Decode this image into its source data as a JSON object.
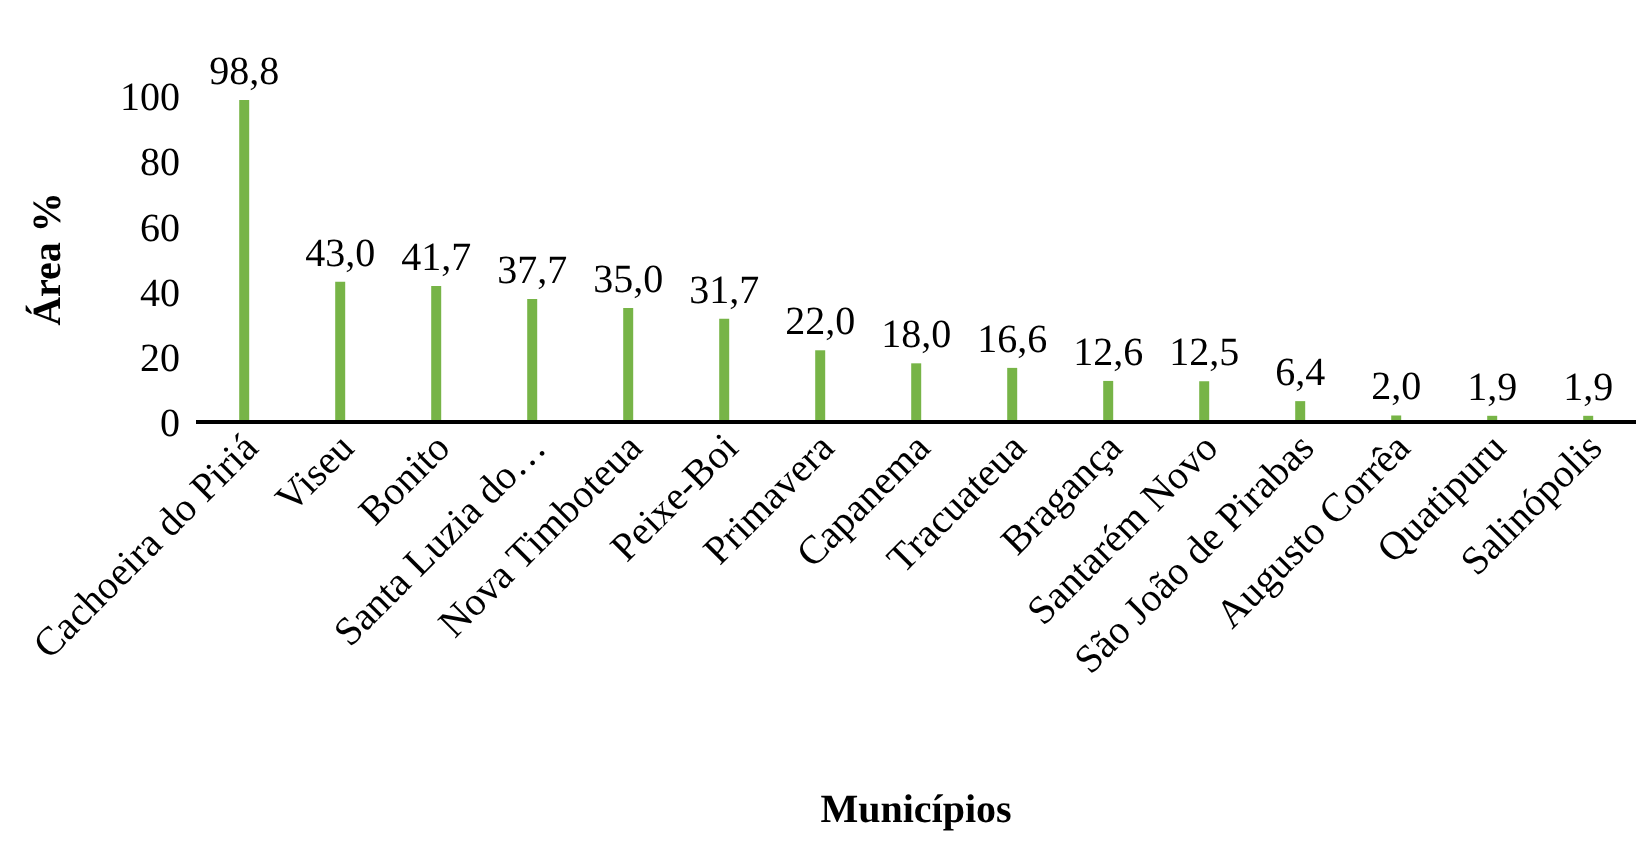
{
  "chart_data": {
    "type": "bar",
    "xlabel": "Municípios",
    "ylabel": "Área %",
    "categories": [
      "Cachoeira do Piriá",
      "Viseu",
      "Bonito",
      "Santa Luzia do…",
      "Nova Timboteua",
      "Peixe-Boi",
      "Primavera",
      "Capanema",
      "Tracuateua",
      "Bragança",
      "Santarém Novo",
      "São João de Pirabas",
      "Augusto Corrêa",
      "Quatipuru",
      "Salinópolis"
    ],
    "values": [
      98.8,
      43.0,
      41.7,
      37.7,
      35.0,
      31.7,
      22.0,
      18.0,
      16.6,
      12.6,
      12.5,
      6.4,
      2.0,
      1.9,
      1.9
    ],
    "value_labels": [
      "98,8",
      "43,0",
      "41,7",
      "37,7",
      "35,0",
      "31,7",
      "22,0",
      "18,0",
      "16,6",
      "12,6",
      "12,5",
      "6,4",
      "2,0",
      "1,9",
      "1,9"
    ],
    "color": "#77b447",
    "ylim": [
      0,
      100
    ],
    "yticks": [
      0,
      20,
      40,
      60,
      80,
      100
    ],
    "grid": false,
    "legend": false
  }
}
